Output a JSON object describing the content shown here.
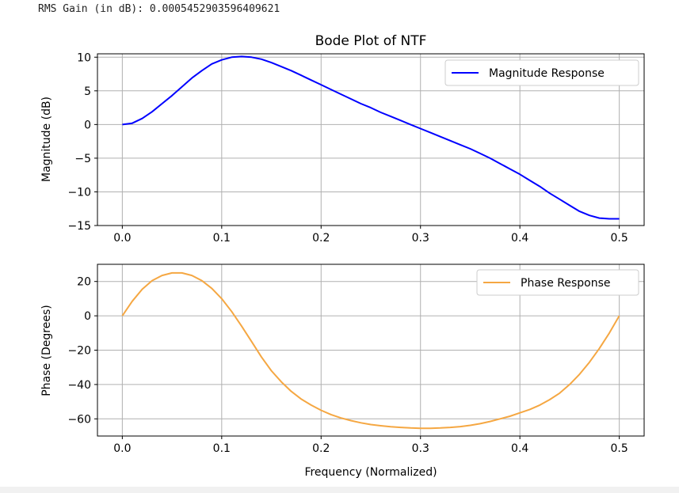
{
  "output": {
    "stdout_line": "RMS Gain (in dB): 0.0005452903596409621"
  },
  "chart_data": [
    {
      "type": "line",
      "title": "Bode Plot of NTF",
      "xlabel": "",
      "ylabel": "Magnitude (dB)",
      "xlim": [
        -0.025,
        0.525
      ],
      "ylim": [
        -15,
        10.5
      ],
      "xticks": [
        0.0,
        0.1,
        0.2,
        0.3,
        0.4,
        0.5
      ],
      "xtick_labels": [
        "0.0",
        "0.1",
        "0.2",
        "0.3",
        "0.4",
        "0.5"
      ],
      "yticks": [
        10,
        5,
        0,
        -5,
        -10,
        -15
      ],
      "ytick_labels": [
        "10",
        "5",
        "0",
        "−5",
        "−10",
        "−15"
      ],
      "grid": true,
      "legend": "top-right",
      "series": [
        {
          "name": "Magnitude Response",
          "color": "#0000ff",
          "x": [
            0.0,
            0.01,
            0.02,
            0.03,
            0.04,
            0.05,
            0.06,
            0.07,
            0.08,
            0.09,
            0.1,
            0.11,
            0.12,
            0.13,
            0.14,
            0.15,
            0.16,
            0.17,
            0.18,
            0.19,
            0.2,
            0.21,
            0.22,
            0.23,
            0.24,
            0.25,
            0.26,
            0.27,
            0.28,
            0.29,
            0.3,
            0.31,
            0.32,
            0.33,
            0.34,
            0.35,
            0.36,
            0.37,
            0.38,
            0.39,
            0.4,
            0.41,
            0.42,
            0.43,
            0.44,
            0.45,
            0.46,
            0.47,
            0.48,
            0.49,
            0.5
          ],
          "values": [
            0.0,
            0.2,
            0.9,
            1.9,
            3.1,
            4.3,
            5.6,
            6.9,
            8.0,
            9.0,
            9.6,
            10.0,
            10.1,
            10.0,
            9.7,
            9.2,
            8.6,
            8.0,
            7.3,
            6.6,
            5.9,
            5.2,
            4.5,
            3.8,
            3.1,
            2.5,
            1.8,
            1.2,
            0.6,
            0.0,
            -0.6,
            -1.2,
            -1.8,
            -2.4,
            -3.0,
            -3.6,
            -4.3,
            -5.0,
            -5.8,
            -6.6,
            -7.4,
            -8.3,
            -9.2,
            -10.2,
            -11.1,
            -12.0,
            -12.9,
            -13.5,
            -13.9,
            -14.0,
            -14.0
          ]
        }
      ]
    },
    {
      "type": "line",
      "title": "",
      "xlabel": "Frequency (Normalized)",
      "ylabel": "Phase (Degrees)",
      "xlim": [
        -0.025,
        0.525
      ],
      "ylim": [
        -70,
        30
      ],
      "xticks": [
        0.0,
        0.1,
        0.2,
        0.3,
        0.4,
        0.5
      ],
      "xtick_labels": [
        "0.0",
        "0.1",
        "0.2",
        "0.3",
        "0.4",
        "0.5"
      ],
      "yticks": [
        20,
        0,
        -20,
        -40,
        -60
      ],
      "ytick_labels": [
        "20",
        "0",
        "−20",
        "−40",
        "−60"
      ],
      "grid": true,
      "legend": "top-right",
      "series": [
        {
          "name": "Phase Response",
          "color": "#f5a742",
          "x": [
            0.0,
            0.01,
            0.02,
            0.03,
            0.04,
            0.05,
            0.06,
            0.07,
            0.08,
            0.09,
            0.1,
            0.11,
            0.12,
            0.13,
            0.14,
            0.15,
            0.16,
            0.17,
            0.18,
            0.19,
            0.2,
            0.21,
            0.22,
            0.23,
            0.24,
            0.25,
            0.26,
            0.27,
            0.28,
            0.29,
            0.3,
            0.31,
            0.32,
            0.33,
            0.34,
            0.35,
            0.36,
            0.37,
            0.38,
            0.39,
            0.4,
            0.41,
            0.42,
            0.43,
            0.44,
            0.45,
            0.46,
            0.47,
            0.48,
            0.49,
            0.5
          ],
          "values": [
            0.0,
            8.5,
            15.5,
            20.5,
            23.5,
            25.0,
            25.0,
            23.5,
            20.5,
            16.0,
            10.0,
            2.5,
            -6.0,
            -15.0,
            -24.0,
            -32.0,
            -38.5,
            -44.0,
            -48.5,
            -52.0,
            -55.0,
            -57.5,
            -59.5,
            -61.0,
            -62.3,
            -63.3,
            -64.0,
            -64.6,
            -65.0,
            -65.3,
            -65.5,
            -65.5,
            -65.3,
            -65.0,
            -64.5,
            -63.8,
            -62.8,
            -61.5,
            -60.0,
            -58.5,
            -56.5,
            -54.5,
            -52.0,
            -48.8,
            -45.0,
            -40.0,
            -34.0,
            -27.0,
            -19.0,
            -10.0,
            0.0
          ]
        }
      ]
    }
  ]
}
